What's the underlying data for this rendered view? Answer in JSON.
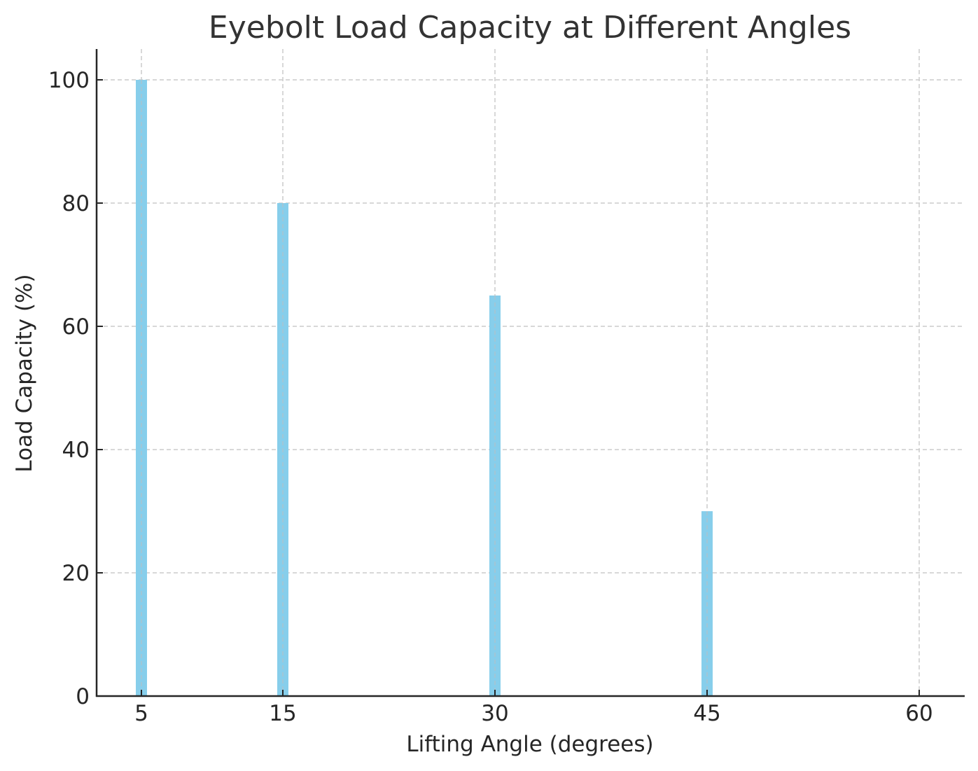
{
  "chart_data": {
    "type": "bar",
    "title": "Eyebolt Load Capacity at Different Angles",
    "xlabel": "Lifting Angle (degrees)",
    "ylabel": "Load Capacity (%)",
    "x": [
      5,
      15,
      30,
      45,
      60
    ],
    "categories": [
      "5",
      "15",
      "30",
      "45",
      "60"
    ],
    "values": [
      100,
      80,
      65,
      30,
      0
    ],
    "xticks": [
      5,
      15,
      30,
      45,
      60
    ],
    "yticks": [
      0,
      20,
      40,
      60,
      80,
      100
    ],
    "ylim": [
      0,
      105
    ],
    "xlim": [
      2.1,
      63.1
    ],
    "grid": true,
    "bar_color": "#87ceeb",
    "legend": null
  }
}
